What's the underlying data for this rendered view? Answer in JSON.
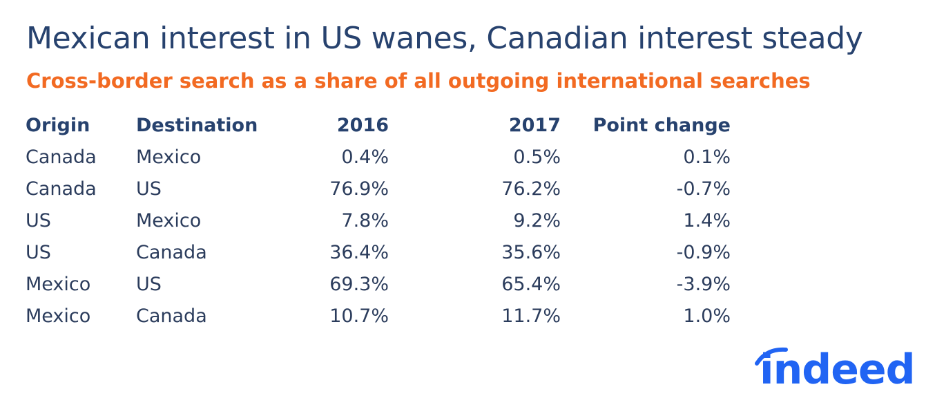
{
  "header": {
    "title": "Mexican interest in US wanes, Canadian interest steady",
    "subtitle": "Cross-border search as a share of all outgoing international searches"
  },
  "table": {
    "columns": [
      "Origin",
      "Destination",
      "2016",
      "2017",
      "Point change"
    ],
    "rows": [
      [
        "Canada",
        "Mexico",
        "0.4%",
        "0.5%",
        "0.1%"
      ],
      [
        "Canada",
        "US",
        "76.9%",
        "76.2%",
        "-0.7%"
      ],
      [
        "US",
        "Mexico",
        "7.8%",
        "9.2%",
        "1.4%"
      ],
      [
        "US",
        "Canada",
        "36.4%",
        "35.6%",
        "-0.9%"
      ],
      [
        "Mexico",
        "US",
        "69.3%",
        "65.4%",
        "-3.9%"
      ],
      [
        "Mexico",
        "Canada",
        "10.7%",
        "11.7%",
        "1.0%"
      ]
    ]
  },
  "logo": {
    "text": "indeed"
  }
}
